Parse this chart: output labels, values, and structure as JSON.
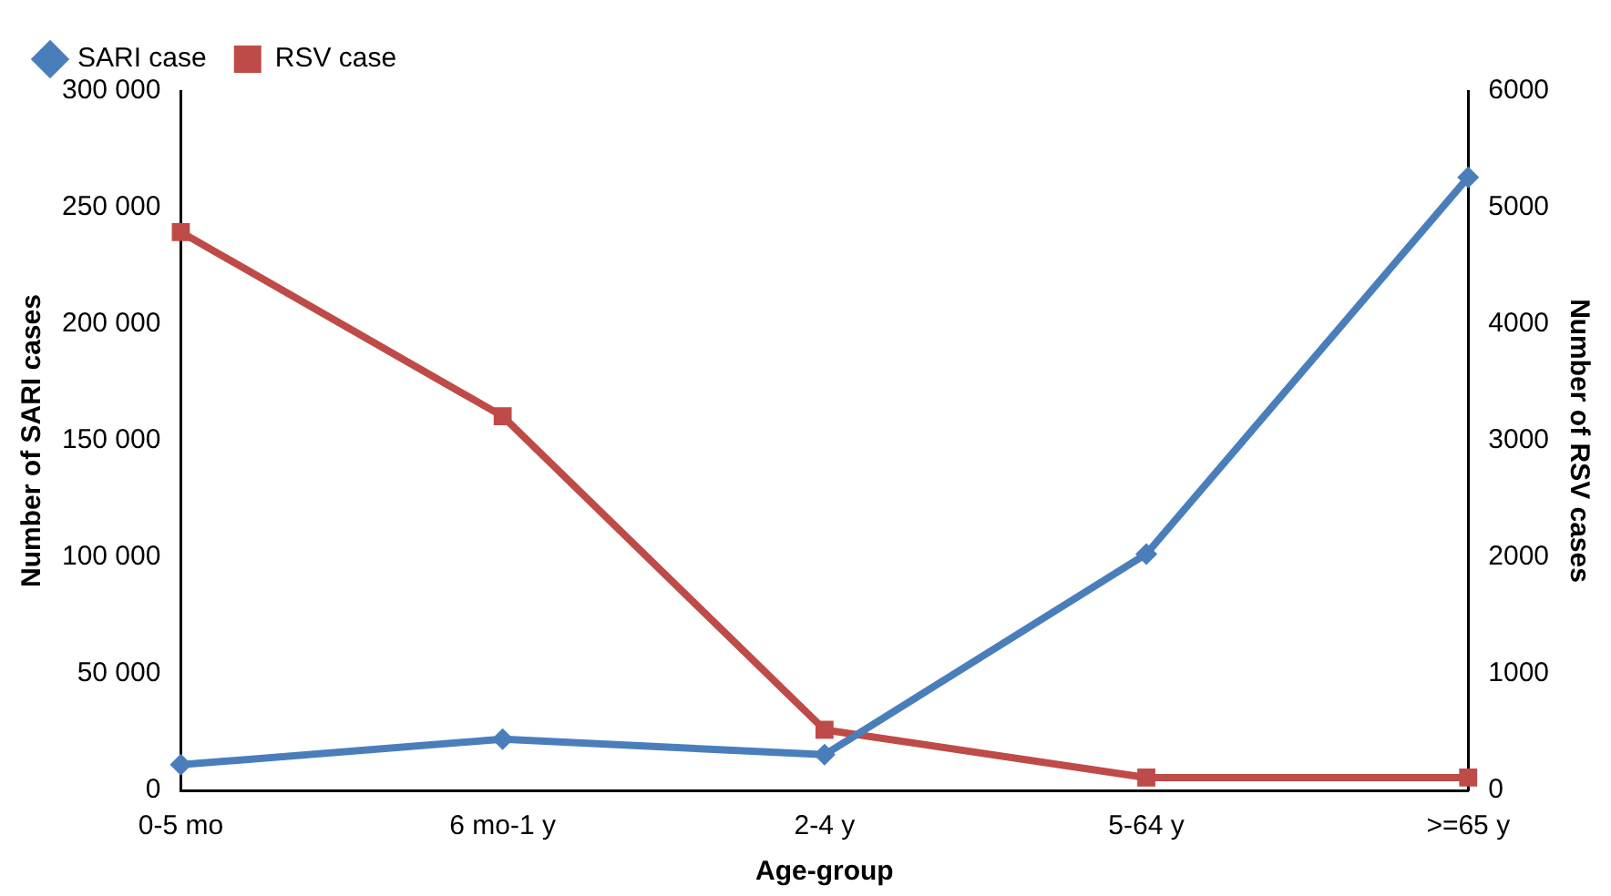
{
  "chart_data": {
    "type": "line",
    "xlabel": "Age-group",
    "ylabel": "Number of SARI cases",
    "y2label": "Number of RSV cases",
    "categories": [
      "0-5 mo",
      "6 mo-1 y",
      "2-4 y",
      "5-64 y",
      ">=65 y"
    ],
    "series": [
      {
        "name": "SARI case",
        "color": "#4a7ebb",
        "marker": "diamond",
        "values": [
          11000,
          22000,
          15300,
          101400,
          263000
        ]
      },
      {
        "name": "RSV case",
        "color": "#be4b48",
        "marker": "square",
        "axis": "y2",
        "values": [
          4790,
          3210,
          520,
          110,
          110
        ]
      }
    ],
    "ylim": [
      0,
      300000
    ],
    "yticks": [
      {
        "value": 0,
        "label": "0"
      },
      {
        "value": 50000,
        "label": "50 000"
      },
      {
        "value": 100000,
        "label": "100 000"
      },
      {
        "value": 150000,
        "label": "150 000"
      },
      {
        "value": 200000,
        "label": "200 000"
      },
      {
        "value": 250000,
        "label": "250 000"
      },
      {
        "value": 300000,
        "label": "300 000"
      }
    ],
    "y2lim": [
      0,
      6000
    ],
    "y2ticks": [
      0,
      1000,
      2000,
      3000,
      4000,
      5000,
      6000
    ],
    "grid": false,
    "legend": "top left",
    "line_style": "solid"
  }
}
